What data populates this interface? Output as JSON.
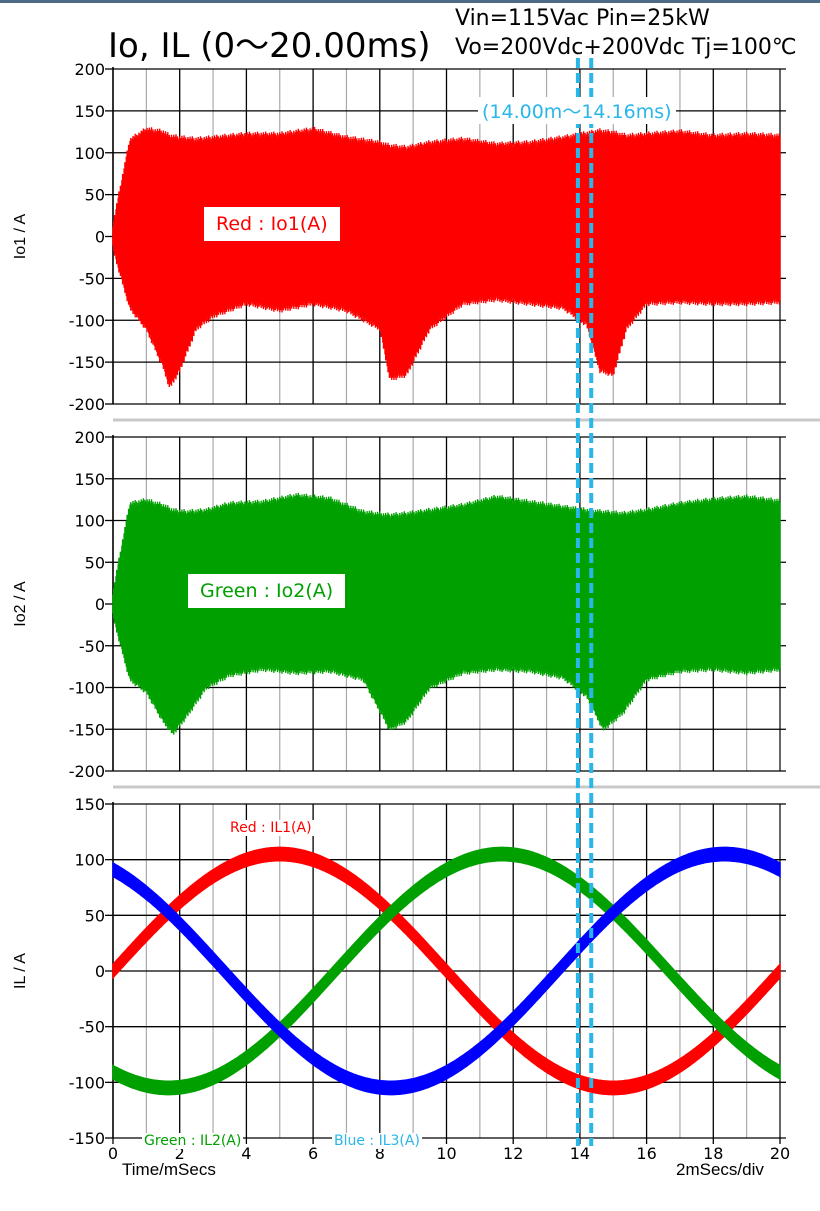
{
  "header": {
    "title": "Io, IL (0～20.00ms)",
    "conditions_line1": "Vin=115Vac Pin=25kW",
    "conditions_line2": "Vo=200Vdc+200Vdc  Tj=100℃"
  },
  "zoom_window": {
    "label": "(14.00m～14.16ms)",
    "start_ms": 14.0,
    "end_ms": 14.16,
    "color": "#29b6e8"
  },
  "footer": {
    "xlabel": "Time/mSecs",
    "scale": "2mSecs/div"
  },
  "colors": {
    "red": "#ff0000",
    "green": "#00a000",
    "blue": "#0000ff",
    "grid_major": "#000000",
    "grid_minor": "#aaaaaa",
    "separator": "#c8c8c8"
  },
  "chart_data": [
    {
      "type": "line",
      "panel": "Io1",
      "ylabel": "Io1 / A",
      "ylim": [
        -200,
        200
      ],
      "yticks": [
        200,
        150,
        100,
        50,
        0,
        -50,
        -100,
        -150,
        -200
      ],
      "xlim": [
        0,
        20
      ],
      "label": "Red : Io1(A)",
      "label_color": "#ff0000",
      "series": [
        {
          "name": "Io1",
          "color": "#ff0000",
          "style": "switching-envelope",
          "x": [
            0,
            0.5,
            1,
            1.5,
            1.7,
            2,
            2.5,
            3,
            4,
            5,
            6,
            7,
            8,
            8.3,
            8.8,
            9.5,
            10.5,
            11.5,
            12.5,
            13.5,
            14.2,
            14.6,
            15,
            15.4,
            16,
            17,
            18,
            19,
            20
          ],
          "upper": [
            15,
            115,
            128,
            125,
            120,
            118,
            116,
            118,
            122,
            122,
            128,
            118,
            112,
            108,
            106,
            112,
            116,
            110,
            112,
            118,
            123,
            126,
            124,
            120,
            122,
            125,
            120,
            122,
            120
          ],
          "lower": [
            -15,
            -85,
            -110,
            -155,
            -180,
            -160,
            -110,
            -95,
            -80,
            -88,
            -80,
            -88,
            -110,
            -170,
            -165,
            -110,
            -80,
            -75,
            -80,
            -85,
            -105,
            -160,
            -165,
            -110,
            -80,
            -78,
            -80,
            -80,
            -78
          ]
        }
      ]
    },
    {
      "type": "line",
      "panel": "Io2",
      "ylabel": "Io2 / A",
      "ylim": [
        -200,
        200
      ],
      "yticks": [
        200,
        150,
        100,
        50,
        0,
        -50,
        -100,
        -150,
        -200
      ],
      "xlim": [
        0,
        20
      ],
      "label": "Green : Io2(A)",
      "label_color": "#00a000",
      "series": [
        {
          "name": "Io2",
          "color": "#00a000",
          "style": "switching-envelope",
          "x": [
            0,
            0.5,
            1,
            1.5,
            1.8,
            2.2,
            2.8,
            3.5,
            4.5,
            5.5,
            6.5,
            7.5,
            8.3,
            8.8,
            9.5,
            10.5,
            11.5,
            12.5,
            13.5,
            14.2,
            14.7,
            15.3,
            16,
            17,
            18,
            19,
            20
          ],
          "upper": [
            15,
            120,
            124,
            118,
            112,
            110,
            112,
            120,
            122,
            130,
            126,
            110,
            106,
            108,
            112,
            118,
            128,
            122,
            116,
            112,
            110,
            108,
            112,
            120,
            125,
            128,
            123
          ],
          "lower": [
            -15,
            -90,
            -105,
            -140,
            -155,
            -135,
            -100,
            -85,
            -78,
            -82,
            -80,
            -90,
            -150,
            -140,
            -100,
            -82,
            -78,
            -80,
            -88,
            -110,
            -150,
            -130,
            -90,
            -80,
            -78,
            -82,
            -78
          ]
        }
      ]
    },
    {
      "type": "line",
      "panel": "IL",
      "ylabel": "IL / A",
      "ylim": [
        -150,
        150
      ],
      "yticks": [
        150,
        100,
        50,
        0,
        -50,
        -100,
        -150
      ],
      "xlim": [
        0,
        20
      ],
      "xticks": [
        0,
        2,
        4,
        6,
        8,
        10,
        12,
        14,
        16,
        18,
        20
      ],
      "labels": [
        {
          "text": "Red : IL1(A)",
          "color": "#ff0000"
        },
        {
          "text": "Green : IL2(A)",
          "color": "#00a000"
        },
        {
          "text": "Blue : IL3(A)",
          "color": "#29b6e8"
        }
      ],
      "series": [
        {
          "name": "IL1",
          "color": "#ff0000",
          "amplitude": 105,
          "phase_deg": 0,
          "period_ms": 20,
          "ripple": 6
        },
        {
          "name": "IL2",
          "color": "#00a000",
          "amplitude": 105,
          "phase_deg": -120,
          "period_ms": 20,
          "ripple": 6
        },
        {
          "name": "IL3",
          "color": "#0000ff",
          "amplitude": 105,
          "phase_deg": 120,
          "period_ms": 20,
          "ripple": 6
        }
      ]
    }
  ]
}
